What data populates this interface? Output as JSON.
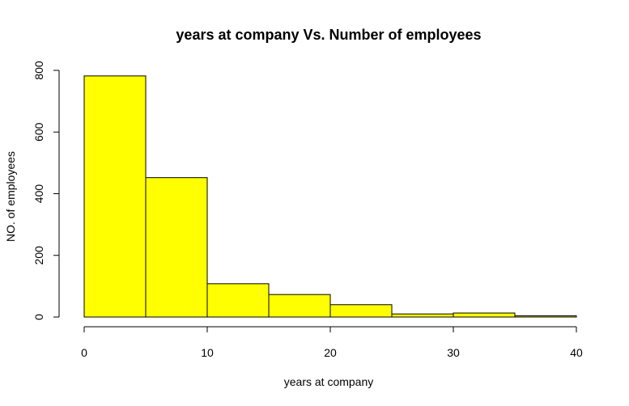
{
  "chart_data": {
    "type": "bar",
    "title": "years at company Vs. Number of employees",
    "xlabel": "years at company",
    "ylabel": "NO. of employees",
    "bin_edges": [
      0,
      5,
      10,
      15,
      20,
      25,
      30,
      35,
      40
    ],
    "values": [
      782,
      452,
      108,
      73,
      40,
      10,
      13,
      4
    ],
    "xlim": [
      0,
      40
    ],
    "ylim": [
      0,
      800
    ],
    "x_ticks": [
      0,
      10,
      20,
      30,
      40
    ],
    "y_ticks": [
      0,
      200,
      400,
      600,
      800
    ],
    "bar_color": "#ffff00",
    "grid": false
  }
}
